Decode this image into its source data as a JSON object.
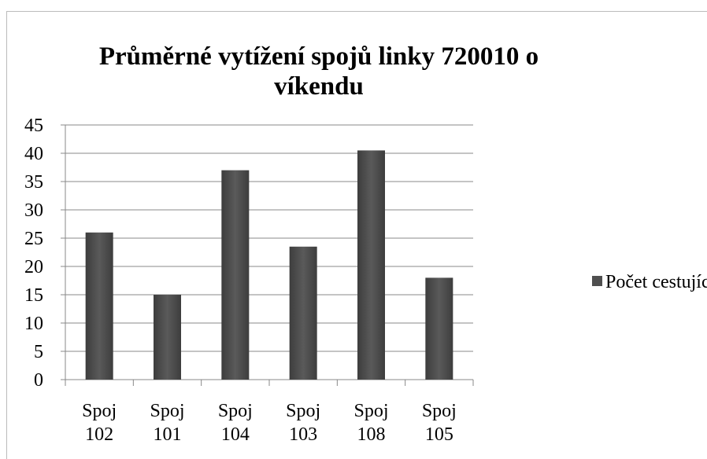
{
  "chart_data": {
    "type": "bar",
    "title": "Průměrné vytížení spojů linky 720010 o víkendu",
    "categories": [
      "Spoj 102",
      "Spoj 101",
      "Spoj 104",
      "Spoj 103",
      "Spoj 108",
      "Spoj 105"
    ],
    "series": [
      {
        "name": "Počet cestujících",
        "color": "#4f4f4f",
        "values": [
          26,
          15,
          37,
          23.5,
          40.5,
          18
        ]
      }
    ],
    "ylim": [
      0,
      45
    ],
    "yticks": [
      0,
      5,
      10,
      15,
      20,
      25,
      30,
      35,
      40,
      45
    ],
    "grid": true,
    "legend": "right"
  }
}
